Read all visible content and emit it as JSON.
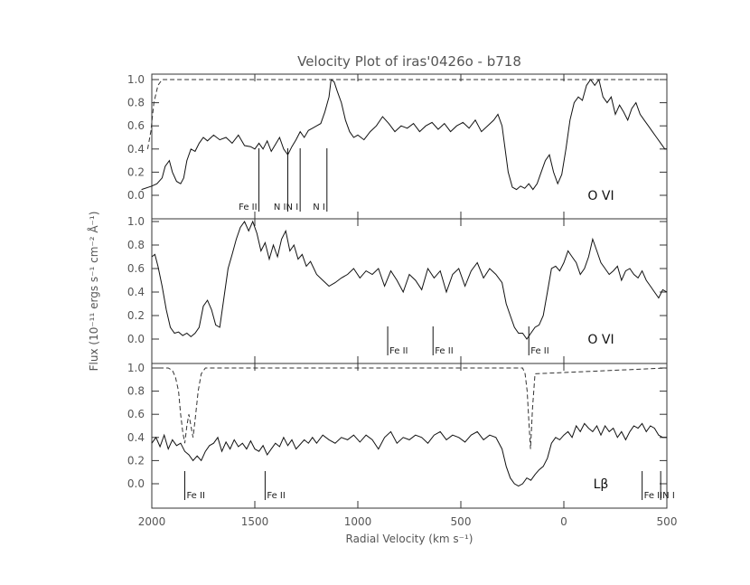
{
  "chart_data": {
    "type": "line",
    "title": "Velocity Plot of iras'0426o - b718",
    "xlabel": "Radial Velocity (km s⁻¹)",
    "ylabel": "Flux (10⁻¹¹ ergs s⁻¹ cm⁻² Å⁻¹)",
    "xlim": [
      2000,
      -500
    ],
    "x_ticks": [
      2000,
      1500,
      1000,
      500,
      0,
      -500
    ],
    "x_tick_labels": [
      "2000",
      "1500",
      "1000",
      "500",
      "0",
      "500"
    ],
    "y_tick_labels": [
      "0.0",
      "0.2",
      "0.4",
      "0.6",
      "0.8",
      "1.0"
    ],
    "panels": [
      {
        "ion_label": "O VI",
        "ylim": [
          -0.15,
          1.0
        ],
        "series": [
          {
            "kind": "spectrum",
            "x": [
              2050,
              2000,
              1975,
              1950,
              1935,
              1915,
              1900,
              1880,
              1860,
              1845,
              1830,
              1810,
              1790,
              1770,
              1750,
              1730,
              1700,
              1670,
              1640,
              1610,
              1580,
              1550,
              1520,
              1500,
              1480,
              1460,
              1440,
              1420,
              1400,
              1380,
              1360,
              1340,
              1320,
              1300,
              1280,
              1260,
              1240,
              1220,
              1200,
              1180,
              1160,
              1140,
              1130,
              1115,
              1100,
              1080,
              1060,
              1040,
              1020,
              1000,
              970,
              940,
              910,
              880,
              850,
              820,
              790,
              760,
              730,
              700,
              670,
              640,
              610,
              580,
              550,
              520,
              490,
              460,
              430,
              400,
              370,
              340,
              320,
              300,
              285,
              270,
              250,
              230,
              210,
              190,
              170,
              150,
              130,
              110,
              90,
              70,
              50,
              30,
              10,
              -10,
              -30,
              -50,
              -70,
              -90,
              -110,
              -130,
              -150,
              -170,
              -190,
              -210,
              -230,
              -250,
              -270,
              -290,
              -310,
              -330,
              -350,
              -370,
              -390,
              -410,
              -430,
              -450,
              -470,
              -490,
              -500
            ],
            "y": [
              0.05,
              0.08,
              0.1,
              0.15,
              0.25,
              0.3,
              0.2,
              0.12,
              0.1,
              0.15,
              0.3,
              0.4,
              0.38,
              0.45,
              0.5,
              0.47,
              0.52,
              0.48,
              0.5,
              0.45,
              0.52,
              0.43,
              0.42,
              0.4,
              0.45,
              0.4,
              0.47,
              0.38,
              0.44,
              0.5,
              0.4,
              0.35,
              0.42,
              0.48,
              0.55,
              0.5,
              0.56,
              0.58,
              0.6,
              0.62,
              0.72,
              0.85,
              1.0,
              0.98,
              0.9,
              0.8,
              0.65,
              0.55,
              0.5,
              0.52,
              0.48,
              0.55,
              0.6,
              0.68,
              0.62,
              0.55,
              0.6,
              0.58,
              0.62,
              0.55,
              0.6,
              0.63,
              0.57,
              0.62,
              0.55,
              0.6,
              0.63,
              0.58,
              0.65,
              0.55,
              0.6,
              0.65,
              0.7,
              0.6,
              0.4,
              0.2,
              0.07,
              0.05,
              0.08,
              0.06,
              0.1,
              0.05,
              0.1,
              0.2,
              0.3,
              0.35,
              0.2,
              0.1,
              0.18,
              0.4,
              0.65,
              0.8,
              0.85,
              0.82,
              0.95,
              1.0,
              0.95,
              1.0,
              0.85,
              0.8,
              0.85,
              0.7,
              0.78,
              0.72,
              0.65,
              0.75,
              0.8,
              0.7,
              0.65,
              0.6,
              0.55,
              0.5,
              0.45,
              0.4,
              0.4
            ]
          },
          {
            "kind": "continuum",
            "x": [
              2020,
              2005,
              1990,
              1970,
              1950,
              -500
            ],
            "y": [
              0.4,
              0.55,
              0.8,
              0.95,
              1.0,
              1.0
            ]
          }
        ],
        "line_ids": [
          {
            "label": "Fe II",
            "x": 1480
          },
          {
            "label": "N I",
            "x": 1340
          },
          {
            "label": "N I",
            "x": 1280
          },
          {
            "label": "N I",
            "x": 1150
          }
        ]
      },
      {
        "ion_label": "O VI",
        "ylim": [
          -0.15,
          1.0
        ],
        "series": [
          {
            "kind": "spectrum",
            "x": [
              2000,
              1985,
              1970,
              1950,
              1930,
              1910,
              1890,
              1870,
              1850,
              1830,
              1810,
              1790,
              1770,
              1750,
              1730,
              1710,
              1690,
              1670,
              1650,
              1630,
              1610,
              1590,
              1570,
              1550,
              1530,
              1510,
              1490,
              1470,
              1450,
              1430,
              1410,
              1390,
              1370,
              1350,
              1330,
              1310,
              1290,
              1270,
              1250,
              1230,
              1200,
              1170,
              1140,
              1110,
              1080,
              1050,
              1020,
              990,
              960,
              930,
              900,
              870,
              840,
              810,
              780,
              750,
              720,
              690,
              660,
              630,
              600,
              570,
              540,
              510,
              480,
              450,
              420,
              390,
              360,
              330,
              300,
              280,
              260,
              240,
              220,
              200,
              180,
              160,
              140,
              120,
              100,
              80,
              60,
              40,
              20,
              0,
              -20,
              -40,
              -60,
              -80,
              -100,
              -120,
              -140,
              -160,
              -180,
              -200,
              -220,
              -240,
              -260,
              -280,
              -300,
              -320,
              -340,
              -360,
              -380,
              -400,
              -420,
              -440,
              -460,
              -480,
              -500
            ],
            "y": [
              0.7,
              0.72,
              0.62,
              0.45,
              0.25,
              0.1,
              0.05,
              0.06,
              0.03,
              0.05,
              0.02,
              0.05,
              0.1,
              0.28,
              0.33,
              0.25,
              0.12,
              0.1,
              0.35,
              0.6,
              0.72,
              0.85,
              0.95,
              1.0,
              0.92,
              1.0,
              0.9,
              0.75,
              0.82,
              0.68,
              0.8,
              0.7,
              0.85,
              0.92,
              0.75,
              0.8,
              0.68,
              0.72,
              0.62,
              0.66,
              0.55,
              0.5,
              0.45,
              0.48,
              0.52,
              0.55,
              0.6,
              0.52,
              0.58,
              0.55,
              0.6,
              0.45,
              0.58,
              0.5,
              0.4,
              0.55,
              0.5,
              0.42,
              0.6,
              0.52,
              0.58,
              0.4,
              0.55,
              0.6,
              0.45,
              0.58,
              0.65,
              0.52,
              0.6,
              0.55,
              0.48,
              0.3,
              0.2,
              0.1,
              0.05,
              0.05,
              0.0,
              0.05,
              0.1,
              0.12,
              0.2,
              0.4,
              0.6,
              0.62,
              0.58,
              0.65,
              0.75,
              0.7,
              0.65,
              0.55,
              0.6,
              0.7,
              0.85,
              0.75,
              0.65,
              0.6,
              0.55,
              0.58,
              0.62,
              0.5,
              0.58,
              0.6,
              0.55,
              0.52,
              0.58,
              0.5,
              0.45,
              0.4,
              0.35,
              0.42,
              0.4
            ]
          }
        ],
        "line_ids": [
          {
            "label": "Fe II",
            "x": 855
          },
          {
            "label": "Fe II",
            "x": 635
          },
          {
            "label": "Fe II",
            "x": 170
          }
        ]
      },
      {
        "ion_label": "Lβ",
        "ylim": [
          -0.15,
          1.0
        ],
        "series": [
          {
            "kind": "spectrum",
            "x": [
              2000,
              1980,
              1960,
              1940,
              1920,
              1900,
              1880,
              1860,
              1840,
              1820,
              1800,
              1780,
              1760,
              1740,
              1720,
              1700,
              1680,
              1660,
              1640,
              1620,
              1600,
              1580,
              1560,
              1540,
              1520,
              1500,
              1480,
              1460,
              1440,
              1420,
              1400,
              1380,
              1360,
              1340,
              1320,
              1300,
              1280,
              1260,
              1240,
              1220,
              1200,
              1170,
              1140,
              1110,
              1080,
              1050,
              1020,
              990,
              960,
              930,
              900,
              870,
              840,
              810,
              780,
              750,
              720,
              690,
              660,
              630,
              600,
              570,
              540,
              510,
              480,
              450,
              420,
              390,
              360,
              330,
              300,
              280,
              260,
              240,
              220,
              200,
              180,
              160,
              140,
              120,
              100,
              80,
              60,
              40,
              20,
              0,
              -20,
              -40,
              -60,
              -80,
              -100,
              -120,
              -140,
              -160,
              -180,
              -200,
              -220,
              -240,
              -260,
              -280,
              -300,
              -320,
              -340,
              -360,
              -380,
              -400,
              -420,
              -440,
              -460,
              -480,
              -500
            ],
            "y": [
              0.35,
              0.4,
              0.32,
              0.42,
              0.3,
              0.38,
              0.33,
              0.35,
              0.28,
              0.25,
              0.2,
              0.24,
              0.2,
              0.28,
              0.33,
              0.35,
              0.4,
              0.28,
              0.36,
              0.3,
              0.38,
              0.32,
              0.35,
              0.3,
              0.37,
              0.3,
              0.28,
              0.33,
              0.25,
              0.3,
              0.35,
              0.32,
              0.4,
              0.33,
              0.38,
              0.3,
              0.34,
              0.38,
              0.35,
              0.4,
              0.35,
              0.42,
              0.38,
              0.35,
              0.4,
              0.38,
              0.42,
              0.36,
              0.42,
              0.38,
              0.3,
              0.4,
              0.45,
              0.35,
              0.4,
              0.38,
              0.42,
              0.4,
              0.35,
              0.42,
              0.45,
              0.38,
              0.42,
              0.4,
              0.36,
              0.42,
              0.45,
              0.38,
              0.42,
              0.4,
              0.3,
              0.15,
              0.05,
              0.0,
              -0.02,
              0.0,
              0.05,
              0.03,
              0.08,
              0.12,
              0.15,
              0.22,
              0.35,
              0.4,
              0.38,
              0.42,
              0.45,
              0.4,
              0.5,
              0.45,
              0.52,
              0.48,
              0.45,
              0.5,
              0.42,
              0.5,
              0.45,
              0.48,
              0.4,
              0.45,
              0.38,
              0.45,
              0.5,
              0.48,
              0.52,
              0.45,
              0.5,
              0.48,
              0.42,
              0.4,
              0.4
            ]
          },
          {
            "kind": "continuum",
            "x": [
              2000,
              1920,
              1900,
              1885,
              1870,
              1860,
              1850,
              1840,
              1830,
              1820,
              1810,
              1800,
              1790,
              1775,
              1760,
              1740,
              1720,
              200,
              188,
              178,
              170,
              162,
              152,
              140,
              -500
            ],
            "y": [
              1.0,
              1.0,
              0.98,
              0.92,
              0.8,
              0.6,
              0.45,
              0.35,
              0.5,
              0.6,
              0.5,
              0.4,
              0.55,
              0.8,
              0.95,
              1.0,
              1.0,
              1.0,
              0.95,
              0.8,
              0.55,
              0.3,
              0.65,
              0.95,
              1.0
            ]
          }
        ],
        "line_ids": [
          {
            "label": "Fe II",
            "x": 1840
          },
          {
            "label": "Fe II",
            "x": 1450
          },
          {
            "label": "Fe II",
            "x": -380
          },
          {
            "label": "N I",
            "x": -470
          }
        ]
      }
    ],
    "grid": false,
    "legend": "none"
  }
}
